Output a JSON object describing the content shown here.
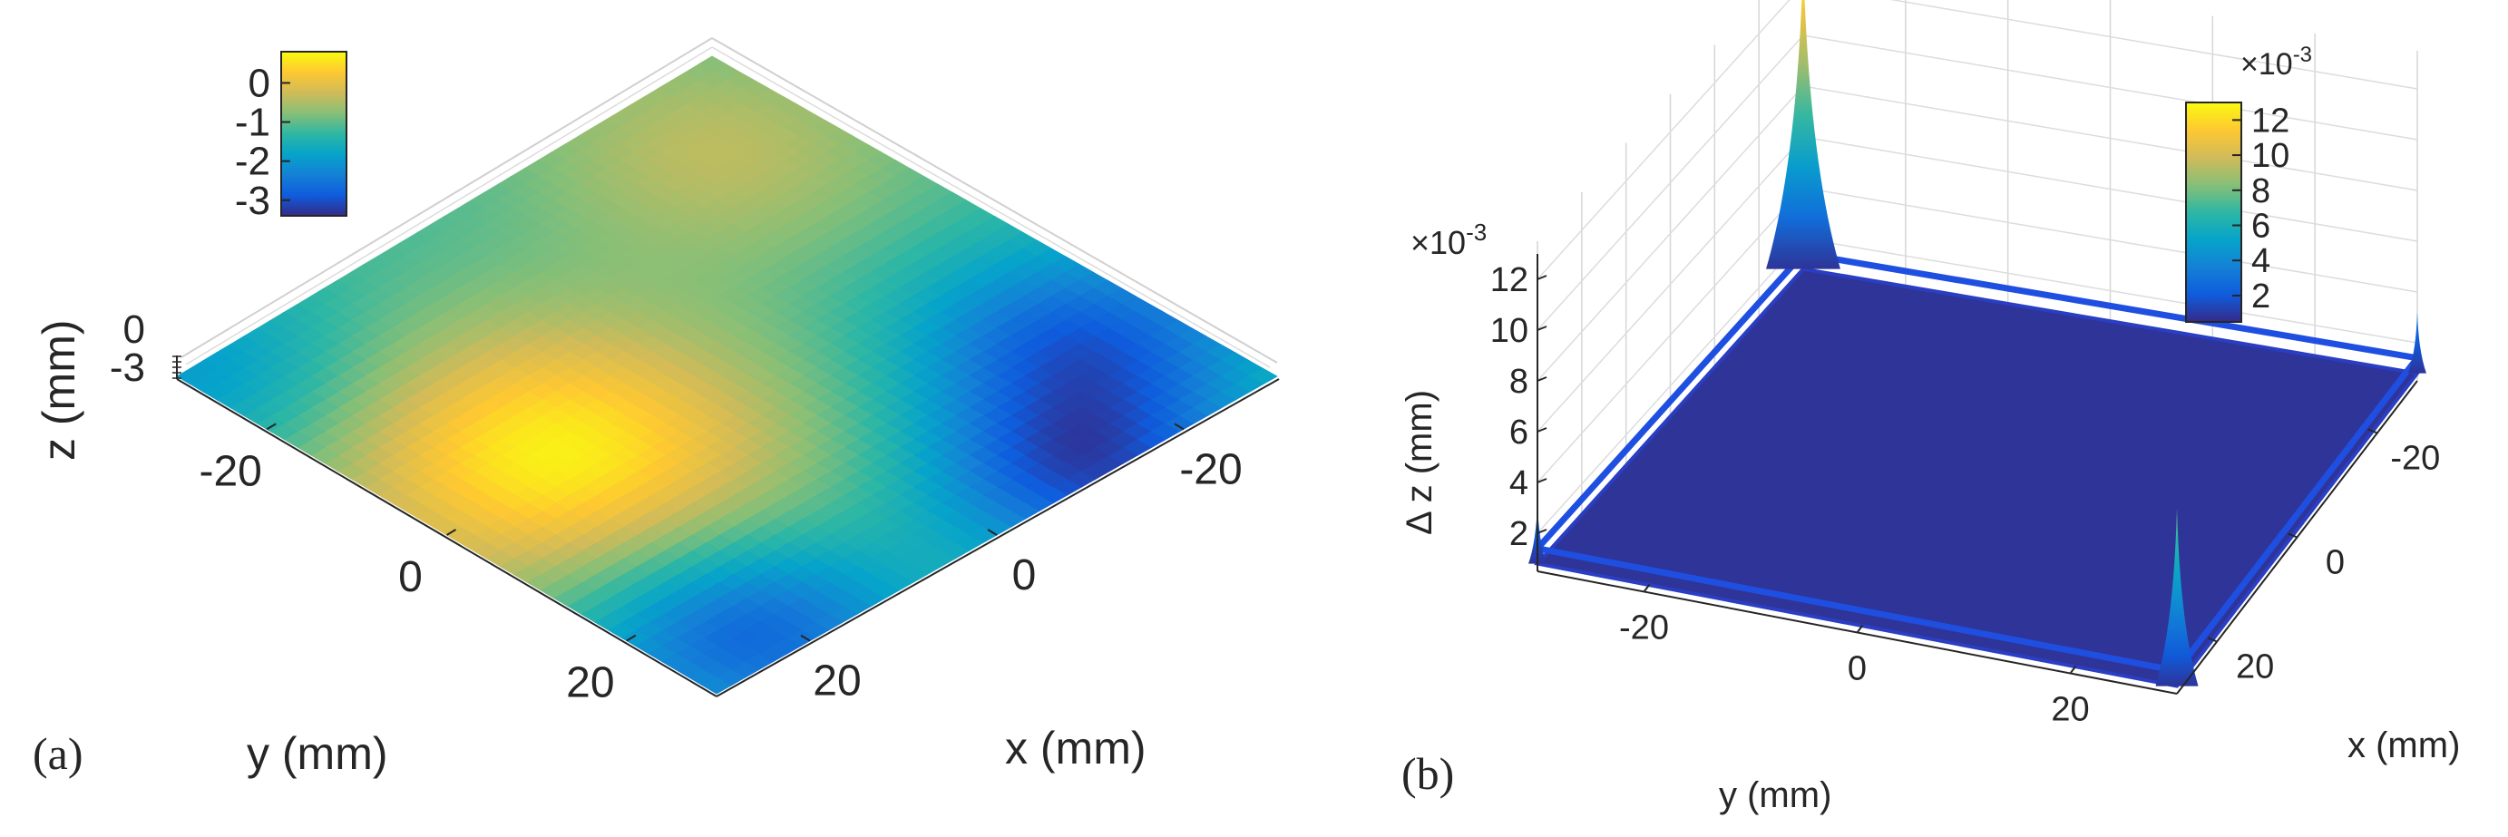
{
  "chart_data": [
    {
      "type": "surface",
      "panel_label": "(a)",
      "xlabel": "x (mm)",
      "ylabel": "y (mm)",
      "zlabel": "z (mm)",
      "x_ticks": [
        "-20",
        "0",
        "20"
      ],
      "y_ticks": [
        "-20",
        "0",
        "20"
      ],
      "z_ticks": [
        "0",
        "-3"
      ],
      "colorbar": {
        "ticks": [
          "0",
          "-1",
          "-2",
          "-3"
        ],
        "range": [
          -3.4,
          0.8
        ]
      },
      "xlim": [
        -30,
        30
      ],
      "ylim": [
        -30,
        30
      ],
      "zlim": [
        -3.4,
        0.8
      ],
      "colormap": [
        "#352a87",
        "#0f5cdd",
        "#1481d6",
        "#06a4ca",
        "#2eb7a4",
        "#87bf77",
        "#d1bb59",
        "#fec832",
        "#f9fb0e"
      ],
      "grid": true
    },
    {
      "type": "surface",
      "panel_label": "(b)",
      "xlabel": "x (mm)",
      "ylabel": "y (mm)",
      "zlabel": "Δ z (mm)",
      "z_multiplier": "×10",
      "z_multiplier_exp": "-3",
      "x_ticks": [
        "-20",
        "0",
        "20"
      ],
      "y_ticks": [
        "-20",
        "0",
        "20"
      ],
      "z_ticks": [
        "2",
        "4",
        "6",
        "8",
        "10",
        "12"
      ],
      "colorbar": {
        "ticks": [
          "2",
          "4",
          "6",
          "8",
          "10",
          "12"
        ],
        "multiplier": "×10",
        "multiplier_exp": "-3",
        "range": [
          0.5,
          13
        ]
      },
      "xlim": [
        -30,
        30
      ],
      "ylim": [
        -30,
        30
      ],
      "zlim": [
        0.5,
        13
      ],
      "floor_value": 0.8,
      "peaks": [
        {
          "x": -30,
          "y": -30,
          "value": 13
        },
        {
          "x": 30,
          "y": 30,
          "value": 7.8
        },
        {
          "x": 30,
          "y": -30,
          "value": 3.2
        },
        {
          "x": -30,
          "y": 30,
          "value": 3.2
        }
      ],
      "grid": true
    }
  ]
}
